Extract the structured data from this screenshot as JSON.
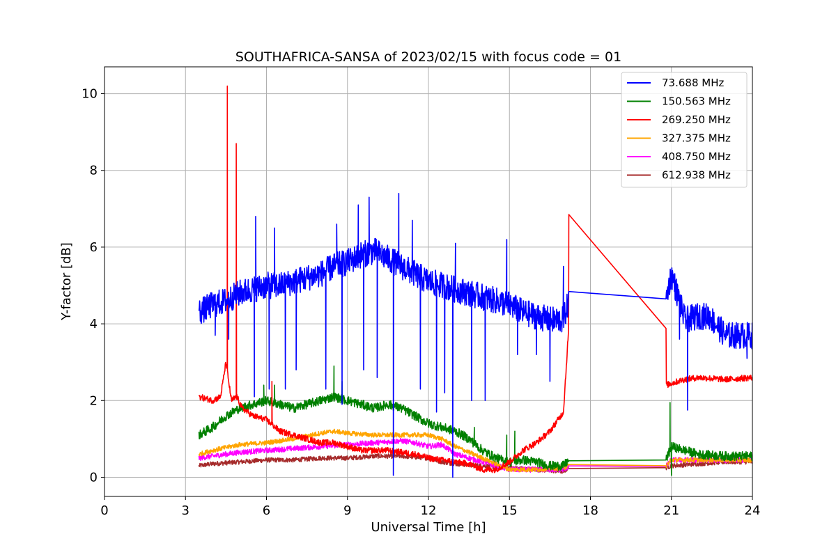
{
  "chart_data": {
    "type": "line",
    "title": "SOUTHAFRICA-SANSA of 2023/02/15 with focus code = 01",
    "xlabel": "Universal Time [h]",
    "ylabel": "Y-factor [dB]",
    "xlim": [
      0,
      24
    ],
    "ylim": [
      -0.5,
      10.7
    ],
    "xticks": [
      0,
      3,
      6,
      9,
      12,
      15,
      18,
      21,
      24
    ],
    "yticks": [
      0,
      2,
      4,
      6,
      8,
      10
    ],
    "xtick_labels": [
      "0",
      "3",
      "6",
      "9",
      "12",
      "15",
      "18",
      "21",
      "24"
    ],
    "ytick_labels": [
      "0",
      "2",
      "4",
      "6",
      "8",
      "10"
    ],
    "grid": true,
    "legend_position": "top-right",
    "series": [
      {
        "name": " 73.688 MHz",
        "color": "#0000ff",
        "x": [
          3.5,
          4.0,
          4.5,
          5.0,
          5.5,
          6.0,
          6.5,
          7.0,
          7.5,
          8.0,
          8.5,
          9.0,
          9.5,
          10.0,
          10.5,
          11.0,
          11.5,
          12.0,
          12.5,
          13.0,
          13.5,
          14.0,
          14.5,
          15.0,
          15.5,
          16.0,
          16.5,
          17.0,
          17.2,
          20.8,
          21.0,
          21.5,
          22.0,
          22.4,
          23.0,
          23.5,
          24.0
        ],
        "y": [
          4.3,
          4.5,
          4.6,
          4.8,
          4.9,
          5.0,
          5.0,
          5.1,
          5.2,
          5.3,
          5.5,
          5.6,
          5.8,
          5.9,
          5.7,
          5.5,
          5.3,
          5.1,
          5.0,
          4.9,
          4.8,
          4.7,
          4.6,
          4.5,
          4.3,
          4.2,
          4.1,
          4.1,
          4.6,
          4.65,
          5.3,
          4.1,
          4.2,
          4.2,
          3.7,
          3.7,
          3.7
        ],
        "spikes": [
          [
            4.1,
            3.7
          ],
          [
            4.6,
            3.6
          ],
          [
            5.6,
            6.8
          ],
          [
            5.55,
            2.1
          ],
          [
            6.1,
            2.3
          ],
          [
            6.3,
            6.5
          ],
          [
            6.7,
            2.3
          ],
          [
            7.1,
            2.8
          ],
          [
            8.2,
            2.3
          ],
          [
            8.6,
            6.6
          ],
          [
            8.8,
            1.9
          ],
          [
            9.4,
            7.1
          ],
          [
            9.6,
            2.8
          ],
          [
            9.8,
            7.3
          ],
          [
            10.1,
            2.6
          ],
          [
            10.7,
            0.05
          ],
          [
            10.9,
            7.4
          ],
          [
            11.4,
            6.7
          ],
          [
            11.7,
            2.3
          ],
          [
            12.3,
            1.7
          ],
          [
            12.6,
            2.2
          ],
          [
            12.9,
            0.0
          ],
          [
            13.0,
            6.1
          ],
          [
            13.6,
            2.0
          ],
          [
            14.1,
            2.0
          ],
          [
            14.9,
            6.2
          ],
          [
            15.3,
            3.2
          ],
          [
            16.0,
            3.2
          ],
          [
            16.5,
            2.5
          ],
          [
            17.0,
            5.5
          ],
          [
            21.3,
            3.6
          ],
          [
            21.6,
            1.75
          ],
          [
            23.8,
            3.1
          ]
        ],
        "noise": 0.35
      },
      {
        "name": "150.563 MHz",
        "color": "#008000",
        "x": [
          3.5,
          4.0,
          4.5,
          5.0,
          5.5,
          6.0,
          6.5,
          7.0,
          7.5,
          8.0,
          8.5,
          9.0,
          9.5,
          10.0,
          10.5,
          11.0,
          11.5,
          12.0,
          12.5,
          13.0,
          13.5,
          14.0,
          14.5,
          15.0,
          15.5,
          16.0,
          16.5,
          17.0,
          17.2,
          20.8,
          21.0,
          21.5,
          22.0,
          23.0,
          24.0
        ],
        "y": [
          1.1,
          1.3,
          1.6,
          1.8,
          1.9,
          2.0,
          1.9,
          1.8,
          1.9,
          2.0,
          2.1,
          2.0,
          1.9,
          1.8,
          1.9,
          1.8,
          1.6,
          1.4,
          1.3,
          1.2,
          1.0,
          0.7,
          0.5,
          0.4,
          0.45,
          0.4,
          0.3,
          0.3,
          0.45,
          0.45,
          0.8,
          0.7,
          0.6,
          0.55,
          0.55
        ],
        "spikes": [
          [
            5.9,
            2.4
          ],
          [
            6.3,
            2.4
          ],
          [
            8.5,
            2.9
          ],
          [
            8.8,
            2.5
          ],
          [
            13.7,
            1.3
          ],
          [
            14.9,
            1.1
          ],
          [
            15.2,
            1.2
          ],
          [
            20.95,
            1.95
          ],
          [
            21.0,
            0.05
          ]
        ],
        "noise": 0.12
      },
      {
        "name": "269.250 MHz",
        "color": "#ff0000",
        "x": [
          3.5,
          4.0,
          4.3,
          4.5,
          4.7,
          4.9,
          5.1,
          5.5,
          6.0,
          6.5,
          7.0,
          7.5,
          8.0,
          8.5,
          9.0,
          9.5,
          10.0,
          10.5,
          11.0,
          11.5,
          12.0,
          12.5,
          13.0,
          13.5,
          14.0,
          14.5,
          15.0,
          15.5,
          16.0,
          16.5,
          17.0,
          17.2,
          20.8,
          20.8,
          21.0,
          21.5,
          22.0,
          23.0,
          24.0
        ],
        "y": [
          2.1,
          2.0,
          2.1,
          3.0,
          2.0,
          2.1,
          1.8,
          1.6,
          1.5,
          1.2,
          1.1,
          1.0,
          0.9,
          0.9,
          0.8,
          0.7,
          0.7,
          0.7,
          0.65,
          0.6,
          0.5,
          0.45,
          0.4,
          0.35,
          0.2,
          0.2,
          0.4,
          0.7,
          0.9,
          1.2,
          1.7,
          3.95,
          3.88,
          2.4,
          2.45,
          2.55,
          2.6,
          2.55,
          2.6
        ],
        "spikes": [
          [
            4.55,
            10.2
          ],
          [
            4.88,
            8.7
          ],
          [
            6.2,
            2.5
          ],
          [
            17.2,
            6.85
          ]
        ],
        "noise": 0.08
      },
      {
        "name": "327.375 MHz",
        "color": "#ffa500",
        "x": [
          3.5,
          4.0,
          5.0,
          6.0,
          7.0,
          8.0,
          8.5,
          9.0,
          10.0,
          11.0,
          12.0,
          12.5,
          13.0,
          14.0,
          15.0,
          16.0,
          17.0,
          17.2,
          20.8,
          21.0,
          22.0,
          23.0,
          24.0
        ],
        "y": [
          0.6,
          0.7,
          0.85,
          0.9,
          1.0,
          1.15,
          1.2,
          1.15,
          1.1,
          1.1,
          1.1,
          1.0,
          0.8,
          0.5,
          0.2,
          0.2,
          0.25,
          0.3,
          0.3,
          0.45,
          0.45,
          0.45,
          0.45
        ],
        "spikes": [],
        "noise": 0.06
      },
      {
        "name": "408.750 MHz",
        "color": "#ff00ff",
        "x": [
          3.5,
          4.0,
          5.0,
          6.0,
          7.0,
          8.0,
          9.0,
          10.0,
          11.0,
          11.5,
          12.0,
          12.5,
          13.0,
          13.5,
          14.0,
          14.5,
          15.0,
          16.0,
          17.0,
          17.2,
          20.8,
          21.0,
          22.0,
          23.0,
          24.0
        ],
        "y": [
          0.5,
          0.55,
          0.65,
          0.7,
          0.75,
          0.8,
          0.85,
          0.9,
          0.95,
          0.9,
          0.8,
          0.85,
          0.6,
          0.5,
          0.4,
          0.3,
          0.2,
          0.2,
          0.2,
          0.28,
          0.28,
          0.45,
          0.45,
          0.45,
          0.45
        ],
        "spikes": [],
        "noise": 0.07
      },
      {
        "name": "612.938 MHz",
        "color": "#a52a2a",
        "x": [
          3.5,
          4.0,
          5.0,
          6.0,
          7.0,
          8.0,
          9.0,
          10.0,
          11.0,
          12.0,
          12.5,
          13.0,
          14.0,
          15.0,
          16.0,
          17.0,
          17.2,
          20.8,
          21.0,
          22.0,
          23.0,
          24.0
        ],
        "y": [
          0.3,
          0.35,
          0.4,
          0.45,
          0.45,
          0.5,
          0.5,
          0.55,
          0.55,
          0.5,
          0.4,
          0.35,
          0.3,
          0.25,
          0.2,
          0.15,
          0.25,
          0.25,
          0.3,
          0.35,
          0.4,
          0.4
        ],
        "spikes": [],
        "noise": 0.06
      }
    ]
  }
}
